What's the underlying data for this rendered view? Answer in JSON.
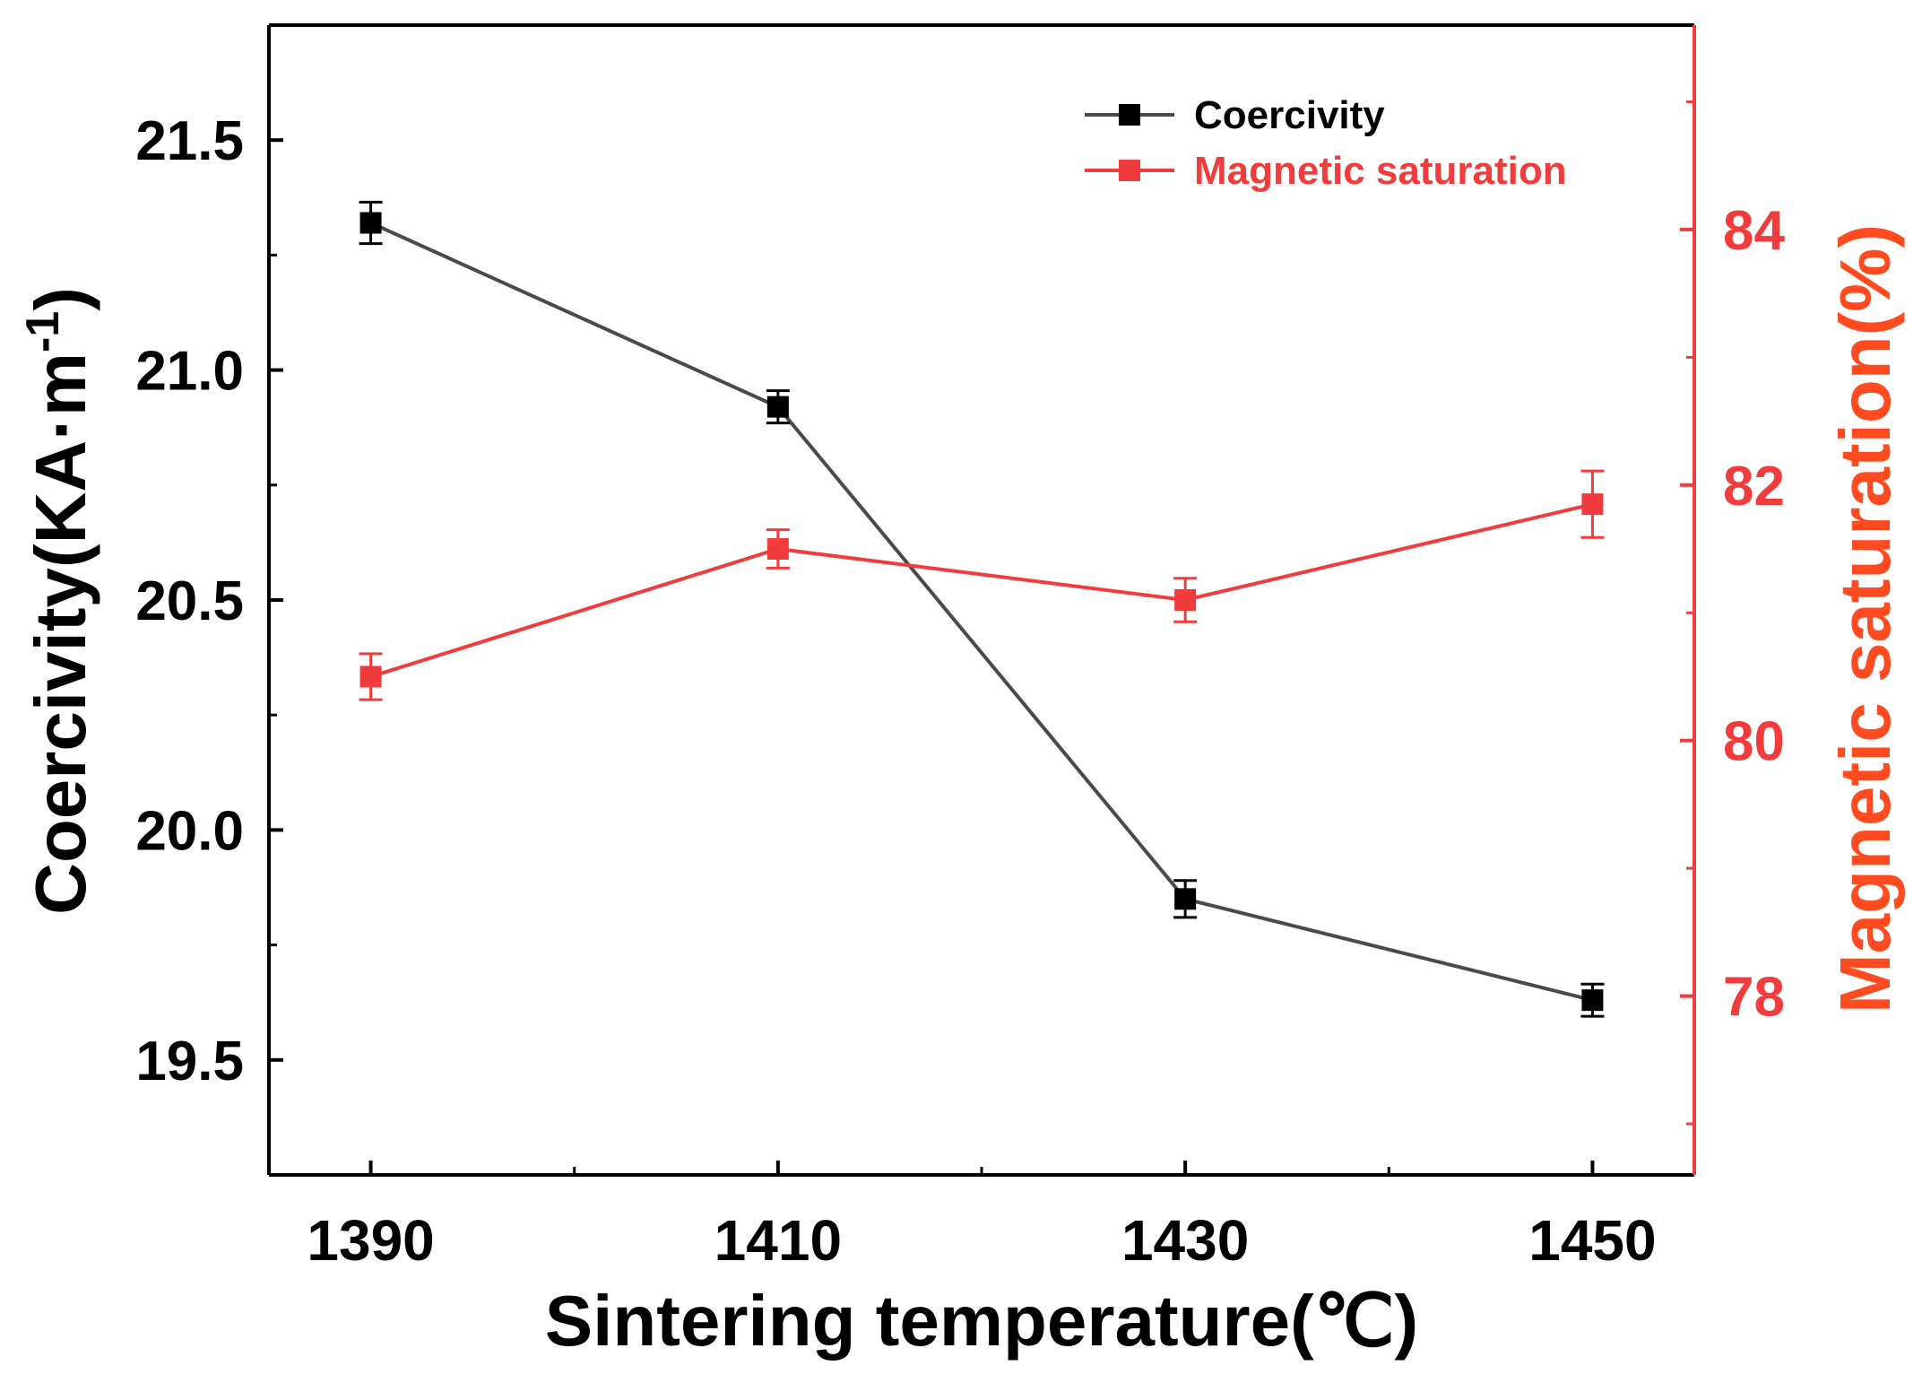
{
  "chart_data": {
    "type": "line",
    "title": "",
    "xlabel": "Sintering temperature(℃)",
    "ylabel": "Coercivity(KA·m",
    "ylabel_superscript": "-1",
    "ylabel_close": ")",
    "y2label": "Magnetic saturation(%)",
    "x": [
      1390,
      1410,
      1430,
      1450
    ],
    "xlim": [
      1385,
      1455
    ],
    "ylim": [
      19.25,
      21.75
    ],
    "y2lim": [
      76.6,
      85.6
    ],
    "x_ticks": [
      "1390",
      "1410",
      "1430",
      "1450"
    ],
    "y_ticks": [
      "19.5",
      "20.0",
      "20.5",
      "21.0",
      "21.5"
    ],
    "y2_ticks": [
      "78",
      "80",
      "82",
      "84"
    ],
    "legend_position": "top-right",
    "series": [
      {
        "name": "Coercivity",
        "axis": "left",
        "color": "#4a4a4a",
        "marker_color": "#000000",
        "values": [
          21.32,
          20.92,
          19.85,
          19.63
        ],
        "errors": [
          0.045,
          0.035,
          0.04,
          0.035
        ]
      },
      {
        "name": "Magnetic saturation",
        "axis": "right",
        "color": "#f03c3c",
        "marker_color": "#f03c3c",
        "values": [
          80.5,
          81.5,
          81.1,
          81.85
        ],
        "errors": [
          0.18,
          0.15,
          0.17,
          0.26
        ]
      }
    ],
    "colors": {
      "axis": "#000000",
      "right_axis": "#f03c3c",
      "right_title": "#ff4b1f"
    }
  }
}
